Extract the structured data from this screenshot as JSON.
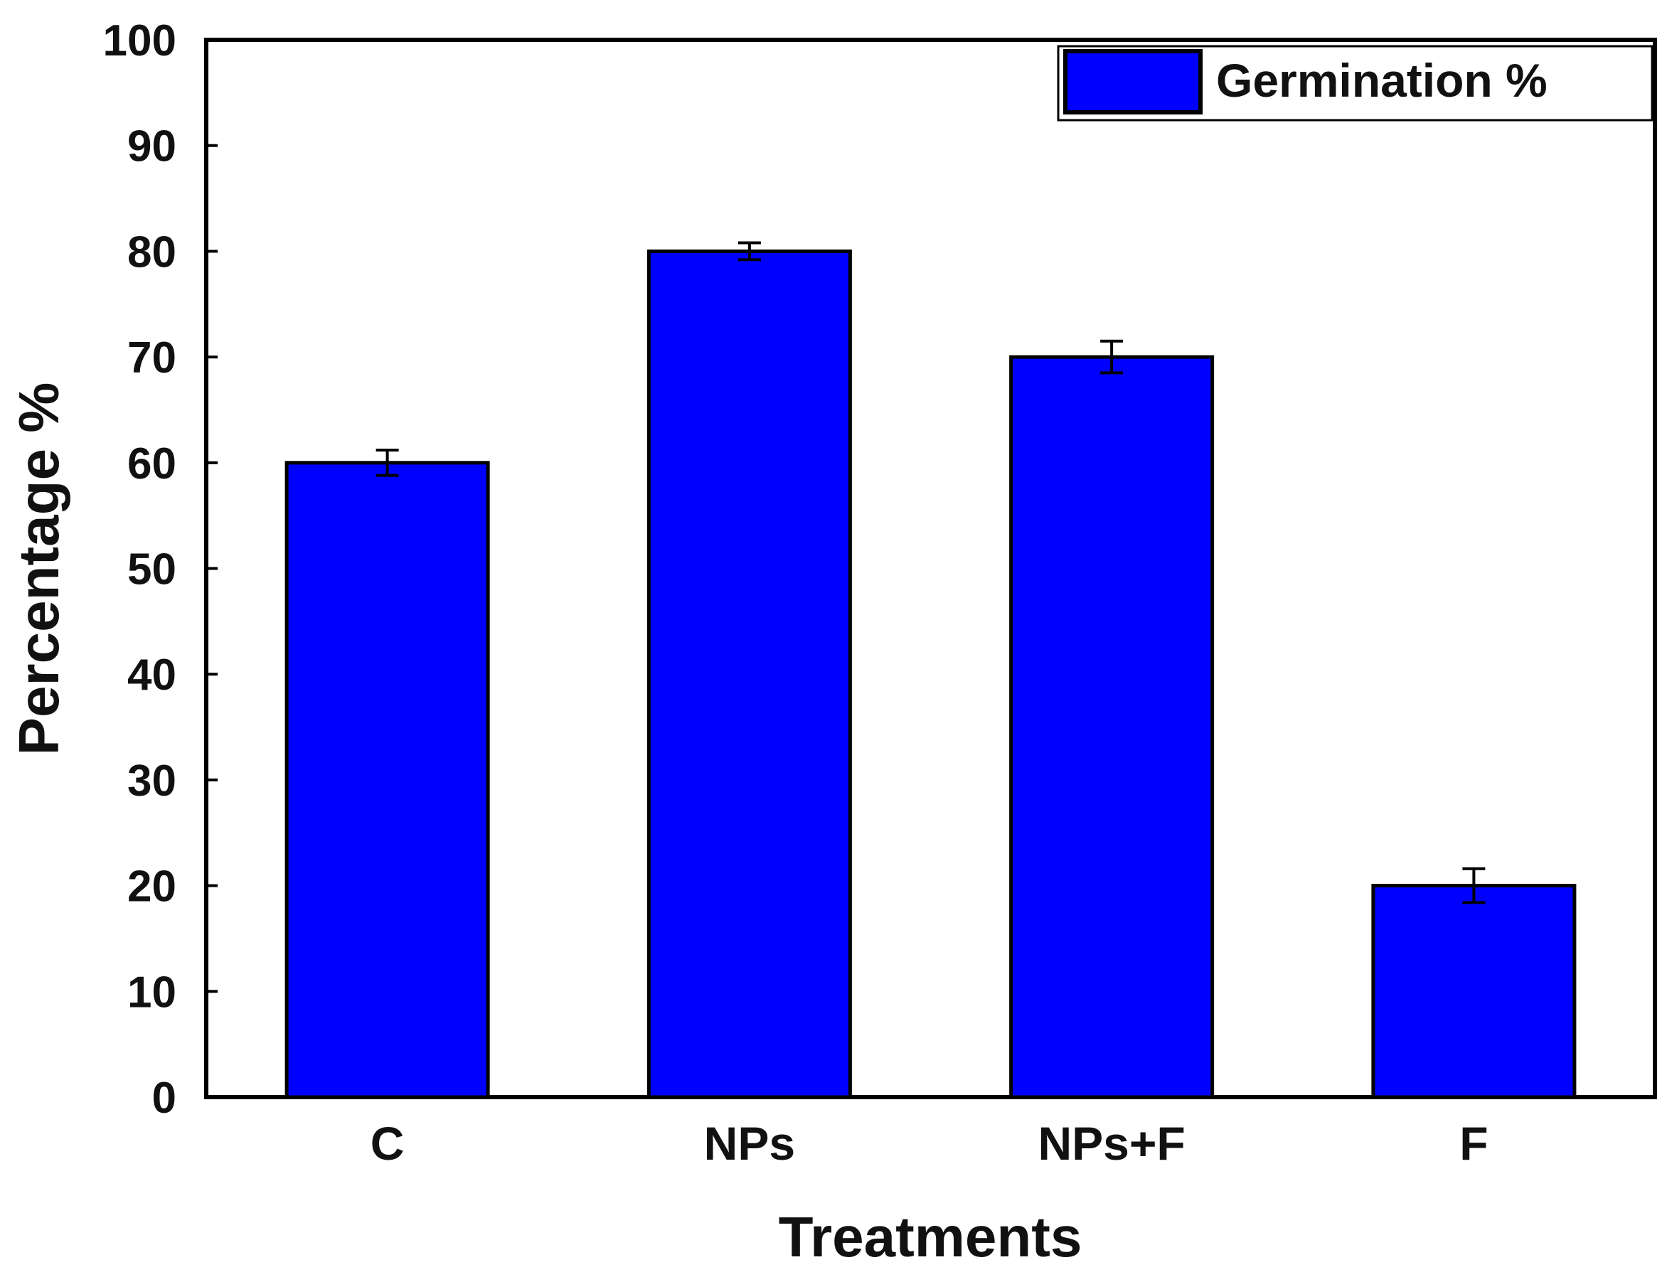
{
  "chart_data": {
    "type": "bar",
    "title": "",
    "xlabel": "Treatments",
    "ylabel": "Percentage %",
    "categories": [
      "C",
      "NPs",
      "NPs+F",
      "F"
    ],
    "series": [
      {
        "name": "Germination %",
        "values": [
          60,
          80,
          70,
          20
        ],
        "errors": [
          1.2,
          0.8,
          1.5,
          1.6
        ],
        "color": "#0000ff"
      }
    ],
    "ylim": [
      0,
      100
    ],
    "yticks": [
      "0",
      "10",
      "20",
      "30",
      "40",
      "50",
      "60",
      "70",
      "80",
      "90",
      "100"
    ],
    "grid": false,
    "legend_position": "top-right"
  }
}
